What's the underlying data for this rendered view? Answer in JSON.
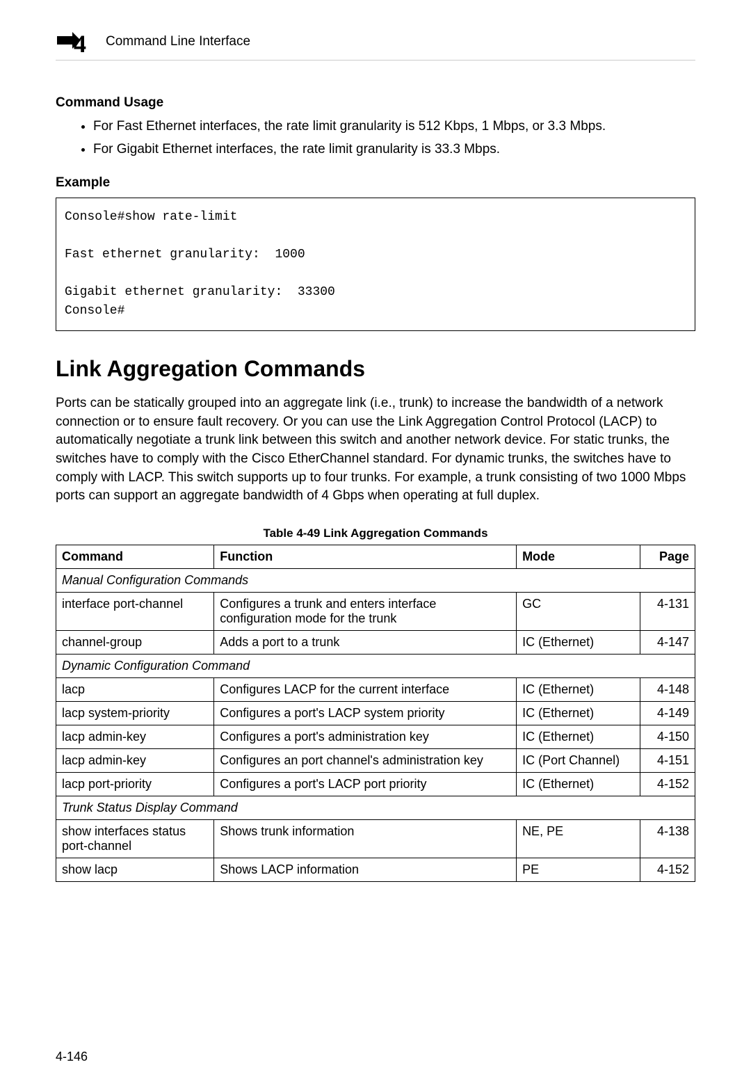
{
  "header": {
    "chapter_number": "4",
    "title": "Command Line Interface"
  },
  "command_usage": {
    "heading": "Command Usage",
    "bullets": [
      "For Fast Ethernet interfaces, the rate limit granularity is 512 Kbps, 1 Mbps, or 3.3 Mbps.",
      "For Gigabit Ethernet interfaces, the rate limit granularity is 33.3 Mbps."
    ]
  },
  "example": {
    "heading": "Example",
    "code": "Console#show rate-limit\n\nFast ethernet granularity:  1000\n\nGigabit ethernet granularity:  33300\nConsole#"
  },
  "main_section": {
    "heading": "Link Aggregation Commands",
    "paragraph": "Ports can be statically grouped into an aggregate link (i.e., trunk) to increase the bandwidth of a network connection or to ensure fault recovery. Or you can use the Link Aggregation Control Protocol (LACP) to automatically negotiate a trunk link between this switch and another network device. For static trunks, the switches have to comply with the Cisco EtherChannel standard. For dynamic trunks, the switches have to comply with LACP. This switch supports up to four trunks. For example, a trunk consisting of two 1000 Mbps ports can support an aggregate bandwidth of 4 Gbps when operating at full duplex."
  },
  "table": {
    "caption": "Table 4-49  Link Aggregation Commands",
    "headers": {
      "c1": "Command",
      "c2": "Function",
      "c3": "Mode",
      "c4": "Page"
    },
    "column_widths": [
      "21%",
      "43%",
      "17%",
      "9%"
    ],
    "rows": [
      {
        "type": "section",
        "label": "Manual Configuration Commands"
      },
      {
        "type": "data",
        "c1": "interface port-channel",
        "c2": "Configures a trunk and enters interface configuration mode for the trunk",
        "c3": "GC",
        "c4": "4-131"
      },
      {
        "type": "data",
        "c1": "channel-group",
        "c2": "Adds a port to a trunk",
        "c3": "IC (Ethernet)",
        "c4": "4-147"
      },
      {
        "type": "section",
        "label": "Dynamic Configuration Command"
      },
      {
        "type": "data",
        "c1": "lacp",
        "c2": "Configures LACP for the current interface",
        "c3": "IC (Ethernet)",
        "c4": "4-148"
      },
      {
        "type": "data",
        "c1": "lacp system-priority",
        "c2": "Configures a port's LACP system priority",
        "c3": "IC (Ethernet)",
        "c4": "4-149"
      },
      {
        "type": "data",
        "c1": "lacp admin-key",
        "c2": "Configures a port's administration key",
        "c3": "IC (Ethernet)",
        "c4": "4-150"
      },
      {
        "type": "data",
        "c1": "lacp admin-key",
        "c2": "Configures an port channel's administration key",
        "c3": "IC (Port Channel)",
        "c4": "4-151"
      },
      {
        "type": "data",
        "c1": "lacp port-priority",
        "c2": "Configures a port's LACP port priority",
        "c3": "IC (Ethernet)",
        "c4": "4-152"
      },
      {
        "type": "section",
        "label": "Trunk Status Display Command"
      },
      {
        "type": "data",
        "c1": "show interfaces status port-channel",
        "c2": "Shows trunk information",
        "c3": "NE, PE",
        "c4": "4-138"
      },
      {
        "type": "data",
        "c1": "show lacp",
        "c2": "Shows LACP information",
        "c3": "PE",
        "c4": "4-152"
      }
    ]
  },
  "footer": {
    "page_number": "4-146"
  }
}
